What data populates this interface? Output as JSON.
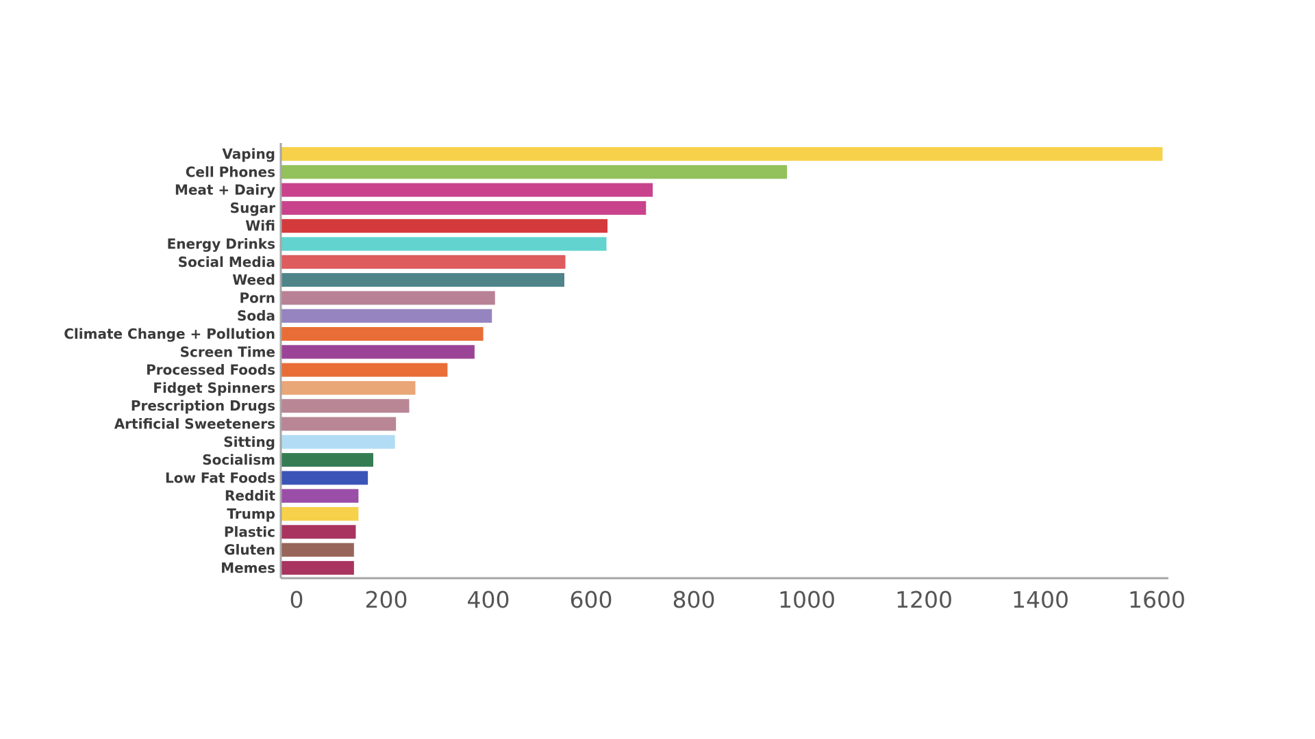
{
  "chart_data": {
    "type": "bar",
    "orientation": "horizontal",
    "categories": [
      "Vaping",
      "Cell Phones",
      "Meat + Dairy",
      "Sugar",
      "Wifi",
      "Energy Drinks",
      "Social Media",
      "Weed",
      "Porn",
      "Soda",
      "Climate Change + Pollution",
      "Screen Time",
      "Processed Foods",
      "Fidget Spinners",
      "Prescription Drugs",
      "Artificial Sweeteners",
      "Sitting",
      "Socialism",
      "Low Fat Foods",
      "Reddit",
      "Trump",
      "Plastic",
      "Gluten",
      "Memes"
    ],
    "values": [
      1610,
      965,
      720,
      707,
      632,
      630,
      550,
      548,
      413,
      407,
      390,
      373,
      320,
      257,
      245,
      219,
      217,
      171,
      159,
      138,
      138,
      132,
      128,
      128
    ],
    "colors": [
      "#f7d14a",
      "#93c15b",
      "#c8438c",
      "#c8438c",
      "#d43a3c",
      "#62d3cf",
      "#de5b5e",
      "#4f8489",
      "#b98196",
      "#9584c0",
      "#e96d37",
      "#9b4497",
      "#e96d37",
      "#e9a676",
      "#b98696",
      "#b98696",
      "#b1dcf4",
      "#357c53",
      "#3b54b7",
      "#9b4ea7",
      "#f7d14a",
      "#a8345f",
      "#98655a",
      "#a8345f"
    ],
    "xticks": [
      0,
      200,
      400,
      600,
      800,
      1000,
      1200,
      1400,
      1600
    ],
    "xlim": [
      0,
      1600
    ],
    "title": "",
    "xlabel": "",
    "ylabel": "",
    "grid": false,
    "legend": "none"
  }
}
